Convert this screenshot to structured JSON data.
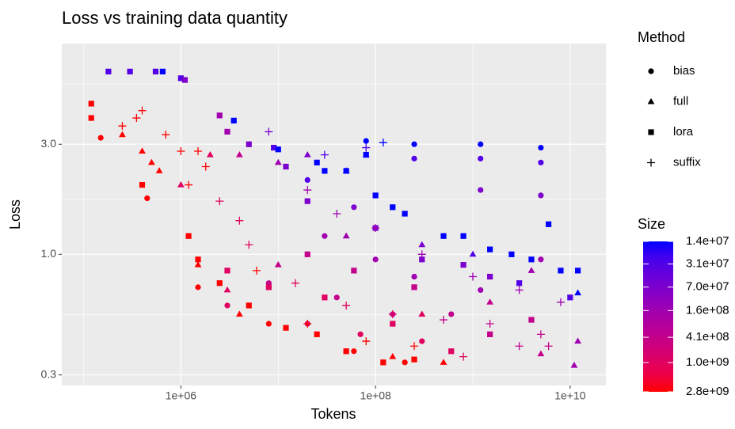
{
  "chart_data": {
    "type": "scatter",
    "title": "Loss vs training data quantity",
    "xlabel": "Tokens",
    "ylabel": "Loss",
    "log_x": true,
    "log_y": true,
    "grid": true,
    "xlim": [
      59700,
      23300000000
    ],
    "xticks": [
      {
        "value": 1000000,
        "label": "1e+06"
      },
      {
        "value": 100000000,
        "label": "1e+08"
      },
      {
        "value": 10000000000,
        "label": "1e+10"
      }
    ],
    "xminor": [
      100000,
      10000000,
      1000000000
    ],
    "ylim": [
      0.27,
      8.2
    ],
    "yticks": [
      {
        "value": 0.3,
        "label": "0.3"
      },
      {
        "value": 1,
        "label": "1.0"
      },
      {
        "value": 3,
        "label": "3.0"
      }
    ],
    "yminor": [
      0.548,
      1.732,
      5.477
    ],
    "legend_title": "Method",
    "color_scale": {
      "title": "Size",
      "low": "#0000ff",
      "high": "#ff0000",
      "lim": [
        14000000,
        2800000000
      ],
      "ticks": [
        {
          "value": 14000000,
          "label": "1.4e+07"
        },
        {
          "value": 31000000,
          "label": "3.1e+07"
        },
        {
          "value": 70000000,
          "label": "7.0e+07"
        },
        {
          "value": 160000000,
          "label": "1.6e+08"
        },
        {
          "value": 410000000,
          "label": "4.1e+08"
        },
        {
          "value": 1000000000,
          "label": "1.0e+09"
        },
        {
          "value": 2800000000,
          "label": "2.8e+09"
        }
      ]
    },
    "series": [
      {
        "name": "bias",
        "shape": "circle",
        "x": [
          80000000,
          250000000,
          1200000000,
          5000000000,
          250000000,
          1200000000,
          5000000000,
          1200000000,
          5000000000,
          150000,
          450000,
          20000000,
          60000000,
          30000000,
          100000000,
          250000000,
          5000000000,
          1200000000,
          8000000,
          40000000,
          150000000,
          600000000,
          3000000,
          20000000,
          70000000,
          300000000,
          1500000,
          8000000,
          60000000,
          200000000
        ],
        "y": [
          3.1,
          3.0,
          3.0,
          2.9,
          2.6,
          2.6,
          2.5,
          1.9,
          1.8,
          3.2,
          1.75,
          2.1,
          1.6,
          1.2,
          0.95,
          0.8,
          0.95,
          0.7,
          0.75,
          0.65,
          0.55,
          0.55,
          0.6,
          0.5,
          0.45,
          0.42,
          0.72,
          0.5,
          0.38,
          0.34
        ],
        "size": [
          14000000,
          14000000,
          14000000,
          14000000,
          31000000,
          31000000,
          31000000,
          70000000,
          70000000,
          2800000000,
          2800000000,
          31000000,
          70000000,
          160000000,
          160000000,
          160000000,
          160000000,
          160000000,
          410000000,
          410000000,
          410000000,
          410000000,
          1000000000,
          1000000000,
          1000000000,
          1000000000,
          2800000000,
          2800000000,
          2800000000,
          2800000000
        ]
      },
      {
        "name": "full",
        "shape": "triangle",
        "x": [
          250000,
          400000,
          500000,
          600000,
          1000000,
          2000000,
          4000000,
          10000000,
          20000000,
          50000000,
          80000000,
          3000000,
          10000000,
          50000000,
          300000000,
          1000000000,
          4000000000,
          12000000000,
          12000000000,
          11000000000,
          5000000000,
          1500000000,
          300000000,
          150000000,
          500000000,
          4000000,
          1500000
        ],
        "y": [
          3.3,
          2.8,
          2.5,
          2.3,
          2.0,
          2.7,
          2.7,
          2.5,
          2.7,
          2.3,
          2.7,
          0.7,
          0.9,
          1.2,
          1.1,
          1.0,
          0.85,
          0.68,
          0.42,
          0.33,
          0.37,
          0.62,
          0.55,
          0.36,
          0.34,
          0.55,
          0.9
        ],
        "size": [
          2800000000,
          2800000000,
          2800000000,
          2800000000,
          1000000000,
          1000000000,
          410000000,
          160000000,
          70000000,
          31000000,
          31000000,
          1000000000,
          410000000,
          160000000,
          70000000,
          31000000,
          160000000,
          14000000,
          160000000,
          160000000,
          410000000,
          410000000,
          1000000000,
          2800000000,
          2800000000,
          2800000000,
          2800000000
        ]
      },
      {
        "name": "lora",
        "shape": "square",
        "x": [
          120000,
          120000,
          180000,
          300000,
          550000,
          650000,
          1000000,
          1100000,
          2500000,
          3500000,
          3000000,
          5000000,
          9000000,
          10000000,
          12000000,
          25000000,
          30000000,
          50000000,
          80000000,
          100000000,
          150000000,
          200000000,
          500000000,
          800000000,
          1500000000,
          2500000000,
          4000000000,
          6000000000,
          8000000000,
          12000000000,
          10000000000,
          3000000000,
          1500000000,
          800000000,
          300000000,
          100000000,
          20000000,
          400000,
          1200000,
          1500000,
          2500000,
          5000000,
          12000000,
          25000000,
          50000000,
          120000000,
          250000000,
          600000000,
          1500000000,
          4000000000,
          3000000,
          8000000,
          30000000,
          150000000,
          20000000,
          60000000,
          250000000
        ],
        "y": [
          4.5,
          3.9,
          6.2,
          6.2,
          6.2,
          6.2,
          5.8,
          5.7,
          4.0,
          3.8,
          3.4,
          3.0,
          2.9,
          2.85,
          2.4,
          2.5,
          2.3,
          2.3,
          2.7,
          1.8,
          1.6,
          1.5,
          1.2,
          1.2,
          1.05,
          1.0,
          0.95,
          1.35,
          0.85,
          0.85,
          0.65,
          0.75,
          0.8,
          0.9,
          0.95,
          1.3,
          1.7,
          2.0,
          1.2,
          0.95,
          0.75,
          0.6,
          0.48,
          0.45,
          0.38,
          0.34,
          0.35,
          0.38,
          0.45,
          0.52,
          0.85,
          0.72,
          0.65,
          0.5,
          1.0,
          0.85,
          0.72
        ],
        "size": [
          2800000000,
          2800000000,
          31000000,
          31000000,
          31000000,
          14000000,
          31000000,
          70000000,
          160000000,
          14000000,
          160000000,
          70000000,
          31000000,
          14000000,
          70000000,
          14000000,
          14000000,
          14000000,
          14000000,
          14000000,
          14000000,
          14000000,
          14000000,
          14000000,
          14000000,
          14000000,
          14000000,
          14000000,
          14000000,
          14000000,
          31000000,
          31000000,
          70000000,
          70000000,
          70000000,
          70000000,
          70000000,
          2800000000,
          2800000000,
          2800000000,
          2800000000,
          2800000000,
          2800000000,
          2800000000,
          2800000000,
          2800000000,
          2800000000,
          1000000000,
          410000000,
          410000000,
          1000000000,
          1000000000,
          1000000000,
          1000000000,
          410000000,
          410000000,
          410000000
        ]
      },
      {
        "name": "suffix",
        "shape": "plus",
        "x": [
          250000,
          350000,
          400000,
          700000,
          1000000,
          1500000,
          1800000,
          1200000,
          2500000,
          4000000,
          5000000,
          8000000,
          30000000,
          120000000,
          80000000,
          20000000,
          40000000,
          100000000,
          300000000,
          1000000000,
          3000000000,
          8000000000,
          5000000000,
          1500000000,
          500000000,
          150000000,
          50000000,
          15000000,
          6000000,
          20000000,
          80000000,
          250000000,
          800000000,
          3000000000,
          6000000000
        ],
        "y": [
          3.6,
          3.9,
          4.2,
          3.3,
          2.8,
          2.8,
          2.4,
          2.0,
          1.7,
          1.4,
          1.1,
          3.4,
          2.7,
          3.05,
          2.9,
          1.9,
          1.5,
          1.3,
          1.0,
          0.8,
          0.7,
          0.62,
          0.45,
          0.5,
          0.52,
          0.55,
          0.6,
          0.75,
          0.85,
          0.5,
          0.42,
          0.4,
          0.36,
          0.4,
          0.4
        ],
        "size": [
          2800000000,
          2800000000,
          2800000000,
          2800000000,
          2800000000,
          2800000000,
          2800000000,
          2800000000,
          1000000000,
          1000000000,
          1000000000,
          70000000,
          31000000,
          14000000,
          31000000,
          160000000,
          160000000,
          160000000,
          160000000,
          160000000,
          160000000,
          160000000,
          410000000,
          410000000,
          410000000,
          1000000000,
          1000000000,
          1000000000,
          2800000000,
          2800000000,
          2800000000,
          2800000000,
          1000000000,
          410000000,
          410000000
        ]
      }
    ]
  }
}
